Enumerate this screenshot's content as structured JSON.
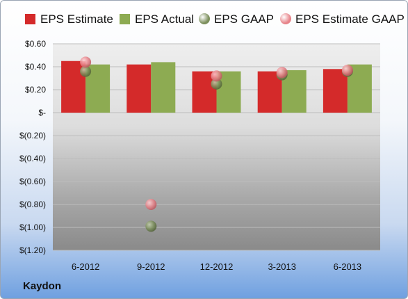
{
  "brand": "Kaydon",
  "legend": [
    {
      "label": "EPS Estimate",
      "color": "#d42a2a",
      "shape": "square"
    },
    {
      "label": "EPS Actual",
      "color": "#8dab52",
      "shape": "square"
    },
    {
      "label": "EPS GAAP",
      "color": "#7c8f5c",
      "shape": "circle"
    },
    {
      "label": "EPS Estimate GAAP",
      "color": "#e7848a",
      "shape": "circle"
    }
  ],
  "chart_data": {
    "type": "bar",
    "categories": [
      "6-2012",
      "9-2012",
      "12-2012",
      "3-2013",
      "6-2013"
    ],
    "series": [
      {
        "name": "EPS Estimate",
        "type": "bar",
        "color": "#d42a2a",
        "values": [
          0.45,
          0.42,
          0.36,
          0.36,
          0.38
        ]
      },
      {
        "name": "EPS Actual",
        "type": "bar",
        "color": "#8dab52",
        "values": [
          0.42,
          0.44,
          0.36,
          0.37,
          0.42
        ]
      },
      {
        "name": "EPS GAAP",
        "type": "scatter",
        "color": "#7c8f5c",
        "values": [
          0.36,
          -0.99,
          0.25,
          0.33,
          0.36
        ]
      },
      {
        "name": "EPS Estimate GAAP",
        "type": "scatter",
        "color": "#e7848a",
        "values": [
          0.44,
          -0.8,
          0.32,
          0.35,
          0.37
        ]
      }
    ],
    "ylim": [
      -1.2,
      0.6
    ],
    "yticks": [
      0.6,
      0.4,
      0.2,
      0,
      -0.2,
      -0.4,
      -0.6,
      -0.8,
      -1.0,
      -1.2
    ],
    "ytick_labels": [
      "$0.60",
      "$0.40",
      "$0.20",
      "$-",
      "$(0.20)",
      "$(0.40)",
      "$(0.60)",
      "$(0.80)",
      "$(1.00)",
      "$(1.20)"
    ],
    "grid": true,
    "legend_position": "top"
  }
}
